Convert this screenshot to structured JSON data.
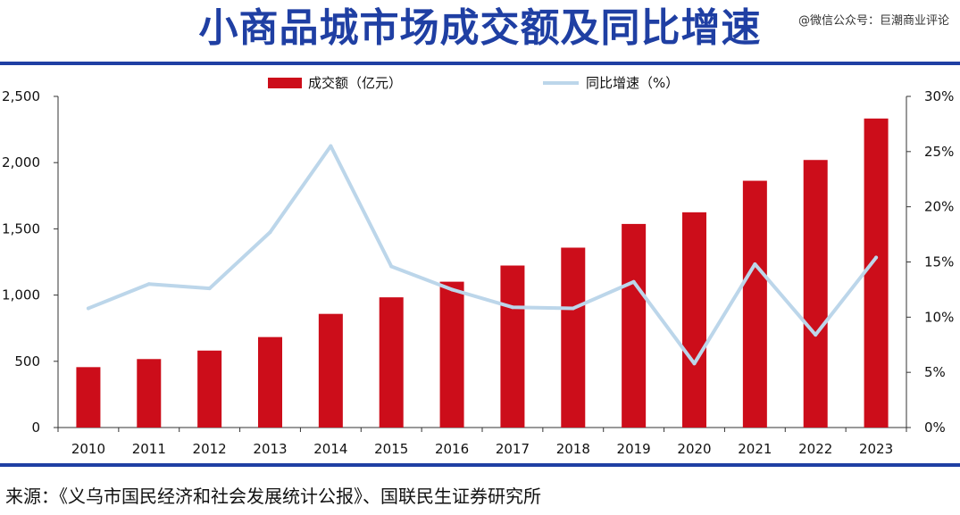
{
  "header": {
    "title": "小商品城市场成交额及同比增速",
    "watermark": "@微信公众号：巨潮商业评论"
  },
  "footer": {
    "source": "来源：《义乌市国民经济和社会发展统计公报》、国联民生证券研究所"
  },
  "chart_data": {
    "type": "bar",
    "categories": [
      "2010",
      "2011",
      "2012",
      "2013",
      "2014",
      "2015",
      "2016",
      "2017",
      "2018",
      "2019",
      "2020",
      "2021",
      "2022",
      "2023"
    ],
    "series": [
      {
        "name": "成交额（亿元）",
        "type": "bar",
        "axis": "left",
        "color": "#cc0d1a",
        "values": [
          456,
          517,
          581,
          683,
          858,
          983,
          1101,
          1223,
          1358,
          1537,
          1625,
          1863,
          2020,
          2333
        ]
      },
      {
        "name": "同比增速（%）",
        "type": "line",
        "axis": "right",
        "color": "#bcd6ea",
        "values": [
          10.8,
          13.0,
          12.6,
          17.7,
          25.5,
          14.6,
          12.5,
          10.9,
          10.8,
          13.2,
          5.8,
          14.8,
          8.4,
          15.4
        ]
      }
    ],
    "y_left": {
      "ylim": [
        0,
        2500
      ],
      "ticks": [
        "0",
        "500",
        "1,000",
        "1,500",
        "2,000",
        "2,500"
      ],
      "tick_values": [
        0,
        500,
        1000,
        1500,
        2000,
        2500
      ]
    },
    "y_right": {
      "ylim": [
        0,
        30
      ],
      "ticks": [
        "0%",
        "5%",
        "10%",
        "15%",
        "20%",
        "25%",
        "30%"
      ],
      "tick_values": [
        0,
        5,
        10,
        15,
        20,
        25,
        30
      ]
    },
    "grid": false,
    "legend": "top-center",
    "xlabel": "",
    "ylabel": ""
  }
}
